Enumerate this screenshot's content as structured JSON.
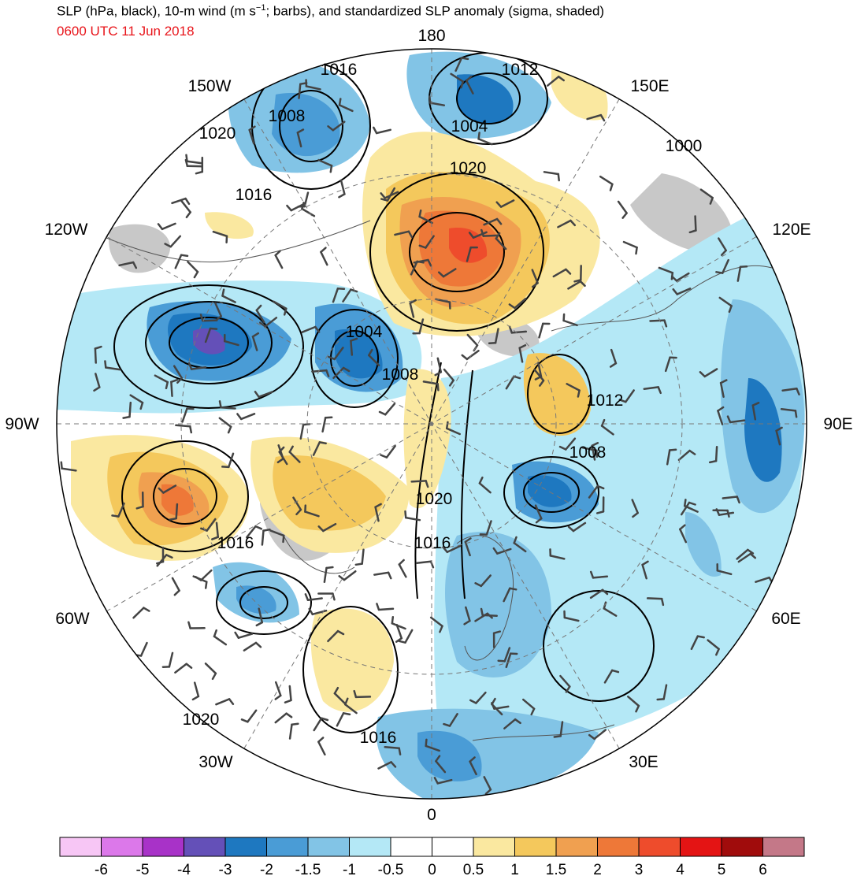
{
  "header": {
    "title_a": "SLP (hPa, black), 10-m wind (m s",
    "title_sup": "−1",
    "title_b": "; barbs), and standardized SLP anomaly (sigma, shaded)",
    "timestamp": "0600 UTC 11 Jun 2018",
    "timestamp_color": "#e8141a"
  },
  "longitude_labels": [
    "180",
    "150E",
    "120E",
    "90E",
    "60E",
    "30E",
    "0",
    "30W",
    "60W",
    "90W",
    "120W",
    "150W"
  ],
  "isobar_labels": [
    "1016",
    "1012",
    "1008",
    "1004",
    "1000",
    "1020",
    "1016",
    "1004",
    "1008",
    "1012",
    "1008",
    "1020",
    "1016",
    "1016",
    "1020",
    "1016"
  ],
  "colorbar": {
    "tick_labels": [
      "-6",
      "-5",
      "-4",
      "-3",
      "-2",
      "-1.5",
      "-1",
      "-0.5",
      "0",
      "0.5",
      "1",
      "1.5",
      "2",
      "3",
      "4",
      "5",
      "6"
    ],
    "colors": [
      "#f7c6f5",
      "#dc78ea",
      "#a832c8",
      "#6450b8",
      "#1e78c0",
      "#4a9cd6",
      "#82c4e6",
      "#b4e8f6",
      "#ffffff",
      "#ffffff",
      "#fae8a0",
      "#f4c85c",
      "#f0a050",
      "#ee7838",
      "#ee4c2c",
      "#e41414",
      "#a00c0c",
      "#c47888"
    ]
  },
  "map_layers": {
    "projection": "north polar stereographic",
    "ocean_color": "#ffffff",
    "land_missing_color": "#c8c8c8"
  }
}
